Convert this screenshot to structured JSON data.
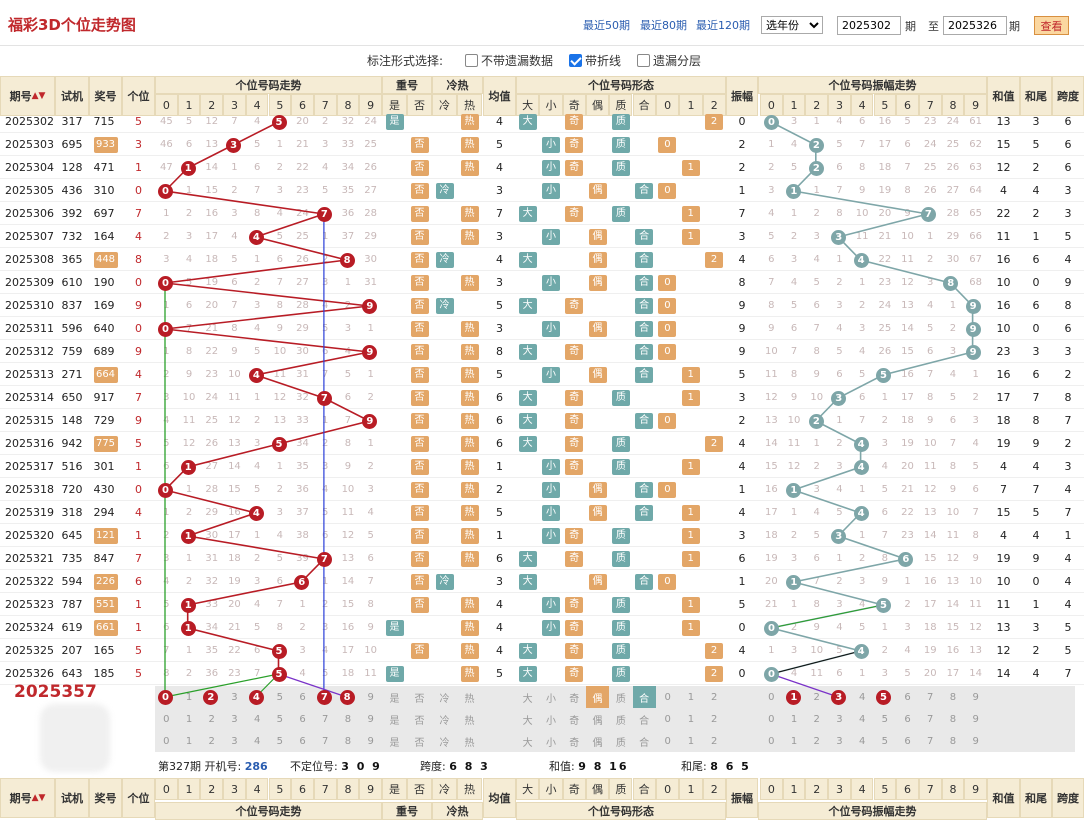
{
  "header": {
    "title": "福彩3D个位走势图",
    "links": [
      "最近50期",
      "最近80期",
      "最近120期"
    ],
    "year_select": "选年份",
    "from_value": "2025302",
    "from_suffix": "期",
    "to_prefix": "至",
    "to_value": "2025326",
    "to_suffix": "期",
    "query": "查看"
  },
  "options": {
    "label": "标注形式选择:",
    "items": [
      {
        "label": "不带遗漏数据",
        "checked": false
      },
      {
        "label": "带折线",
        "checked": true
      },
      {
        "label": "遗漏分层",
        "checked": false
      }
    ]
  },
  "columns": {
    "period": "期号",
    "trial": "试机",
    "prize": "奖号",
    "unit": "个位",
    "trend": "个位号码走势",
    "repeat": "重号",
    "repeat_yes": "是",
    "repeat_no": "否",
    "coldhot": "冷热",
    "cold": "冷",
    "hot": "热",
    "avg": "均值",
    "form": "个位号码形态",
    "big": "大",
    "small": "小",
    "odd": "奇",
    "even": "偶",
    "prime": "质",
    "composite": "合",
    "amp": "振幅",
    "amp_trend": "个位号码振幅走势",
    "sum": "和值",
    "tail": "和尾",
    "span": "跨度",
    "digits": [
      "0",
      "1",
      "2",
      "3",
      "4",
      "5",
      "6",
      "7",
      "8",
      "9"
    ],
    "road": [
      "0",
      "1",
      "2"
    ]
  },
  "rows": [
    {
      "p": "2025302",
      "t": "317",
      "z": "715",
      "g": 5,
      "avg": 4,
      "amp": 0,
      "sum": 13,
      "tail": 3,
      "span": 6,
      "rep": "是",
      "ch": "热",
      "miss": [
        "45",
        "5",
        "12",
        "7",
        "4",
        "",
        "20",
        "2",
        "32",
        "24"
      ],
      "am": [
        "",
        "3",
        "1",
        "4",
        "6",
        "16",
        "5",
        "23",
        "24",
        "61"
      ]
    },
    {
      "p": "2025303",
      "t": "695",
      "z": "933",
      "g": 3,
      "avg": 5,
      "amp": 2,
      "sum": 15,
      "tail": 5,
      "span": 6,
      "rep": "否",
      "ch": "热",
      "miss": [
        "46",
        "6",
        "13",
        "",
        "5",
        "1",
        "21",
        "3",
        "33",
        "25"
      ],
      "am": [
        "1",
        "4",
        "",
        "5",
        "7",
        "17",
        "6",
        "24",
        "25",
        "62"
      ]
    },
    {
      "p": "2025304",
      "t": "128",
      "z": "471",
      "g": 1,
      "avg": 4,
      "amp": 2,
      "sum": 12,
      "tail": 2,
      "span": 6,
      "rep": "否",
      "ch": "热",
      "miss": [
        "47",
        "",
        "14",
        "1",
        "6",
        "2",
        "22",
        "4",
        "34",
        "26"
      ],
      "am": [
        "2",
        "5",
        "",
        "6",
        "8",
        "18",
        "7",
        "25",
        "26",
        "63"
      ]
    },
    {
      "p": "2025305",
      "t": "436",
      "z": "310",
      "g": 0,
      "avg": 3,
      "amp": 1,
      "sum": 4,
      "tail": 4,
      "span": 3,
      "rep": "否",
      "ch": "冷",
      "miss": [
        "",
        "1",
        "15",
        "2",
        "7",
        "3",
        "23",
        "5",
        "35",
        "27"
      ],
      "am": [
        "3",
        "",
        "1",
        "7",
        "9",
        "19",
        "8",
        "26",
        "27",
        "64"
      ]
    },
    {
      "p": "2025306",
      "t": "392",
      "z": "697",
      "g": 7,
      "avg": 7,
      "amp": 7,
      "sum": 22,
      "tail": 2,
      "span": 3,
      "rep": "否",
      "ch": "热",
      "miss": [
        "1",
        "2",
        "16",
        "3",
        "8",
        "4",
        "24",
        "",
        "36",
        "28"
      ],
      "am": [
        "4",
        "1",
        "2",
        "8",
        "10",
        "20",
        "9",
        "",
        "28",
        "65"
      ]
    },
    {
      "p": "2025307",
      "t": "732",
      "z": "164",
      "g": 4,
      "avg": 3,
      "amp": 3,
      "sum": 11,
      "tail": 1,
      "span": 5,
      "rep": "否",
      "ch": "热",
      "miss": [
        "2",
        "3",
        "17",
        "4",
        "",
        "5",
        "25",
        "1",
        "37",
        "29"
      ],
      "am": [
        "5",
        "2",
        "3",
        "",
        "11",
        "21",
        "10",
        "1",
        "29",
        "66"
      ]
    },
    {
      "p": "2025308",
      "t": "365",
      "z": "448",
      "g": 8,
      "avg": 4,
      "amp": 4,
      "sum": 16,
      "tail": 6,
      "span": 4,
      "rep": "否",
      "ch": "冷",
      "miss": [
        "3",
        "4",
        "18",
        "5",
        "1",
        "6",
        "26",
        "2",
        "",
        "30"
      ],
      "am": [
        "6",
        "3",
        "4",
        "1",
        "",
        "22",
        "11",
        "2",
        "30",
        "67"
      ]
    },
    {
      "p": "2025309",
      "t": "610",
      "z": "190",
      "g": 0,
      "avg": 3,
      "amp": 8,
      "sum": 10,
      "tail": 0,
      "span": 9,
      "rep": "否",
      "ch": "热",
      "miss": [
        "",
        "5",
        "19",
        "6",
        "2",
        "7",
        "27",
        "3",
        "1",
        "31"
      ],
      "am": [
        "7",
        "4",
        "5",
        "2",
        "1",
        "23",
        "12",
        "3",
        "",
        "68"
      ]
    },
    {
      "p": "2025310",
      "t": "837",
      "z": "169",
      "g": 9,
      "avg": 5,
      "amp": 9,
      "sum": 16,
      "tail": 6,
      "span": 8,
      "rep": "否",
      "ch": "冷",
      "miss": [
        "1",
        "6",
        "20",
        "7",
        "3",
        "8",
        "28",
        "4",
        "2",
        ""
      ],
      "am": [
        "8",
        "5",
        "6",
        "3",
        "2",
        "24",
        "13",
        "4",
        "1",
        ""
      ]
    },
    {
      "p": "2025311",
      "t": "596",
      "z": "640",
      "g": 0,
      "avg": 3,
      "amp": 9,
      "sum": 10,
      "tail": 0,
      "span": 6,
      "rep": "否",
      "ch": "热",
      "miss": [
        "",
        "7",
        "21",
        "8",
        "4",
        "9",
        "29",
        "5",
        "3",
        "1"
      ],
      "am": [
        "9",
        "6",
        "7",
        "4",
        "3",
        "25",
        "14",
        "5",
        "2",
        ""
      ]
    },
    {
      "p": "2025312",
      "t": "759",
      "z": "689",
      "g": 9,
      "avg": 8,
      "amp": 9,
      "sum": 23,
      "tail": 3,
      "span": 3,
      "rep": "否",
      "ch": "热",
      "miss": [
        "1",
        "8",
        "22",
        "9",
        "5",
        "10",
        "30",
        "6",
        "4",
        ""
      ],
      "am": [
        "10",
        "7",
        "8",
        "5",
        "4",
        "26",
        "15",
        "6",
        "3",
        ""
      ]
    },
    {
      "p": "2025313",
      "t": "271",
      "z": "664",
      "g": 4,
      "avg": 5,
      "amp": 5,
      "sum": 16,
      "tail": 6,
      "span": 2,
      "rep": "否",
      "ch": "热",
      "miss": [
        "2",
        "9",
        "23",
        "10",
        "",
        "11",
        "31",
        "7",
        "5",
        "1"
      ],
      "am": [
        "11",
        "8",
        "9",
        "6",
        "5",
        "",
        "16",
        "7",
        "4",
        "1"
      ]
    },
    {
      "p": "2025314",
      "t": "650",
      "z": "917",
      "g": 7,
      "avg": 6,
      "amp": 3,
      "sum": 17,
      "tail": 7,
      "span": 8,
      "rep": "否",
      "ch": "热",
      "miss": [
        "3",
        "10",
        "24",
        "11",
        "1",
        "12",
        "32",
        "",
        "6",
        "2"
      ],
      "am": [
        "12",
        "9",
        "10",
        "",
        "6",
        "1",
        "17",
        "8",
        "5",
        "2"
      ]
    },
    {
      "p": "2025315",
      "t": "148",
      "z": "729",
      "g": 9,
      "avg": 6,
      "amp": 2,
      "sum": 18,
      "tail": 8,
      "span": 7,
      "rep": "否",
      "ch": "热",
      "miss": [
        "4",
        "11",
        "25",
        "12",
        "2",
        "13",
        "33",
        "1",
        "7",
        ""
      ],
      "am": [
        "13",
        "10",
        "",
        "1",
        "7",
        "2",
        "18",
        "9",
        "6",
        "3"
      ]
    },
    {
      "p": "2025316",
      "t": "942",
      "z": "775",
      "g": 5,
      "avg": 6,
      "amp": 4,
      "sum": 19,
      "tail": 9,
      "span": 2,
      "rep": "否",
      "ch": "热",
      "miss": [
        "5",
        "12",
        "26",
        "13",
        "3",
        "",
        "34",
        "2",
        "8",
        "1"
      ],
      "am": [
        "14",
        "11",
        "1",
        "2",
        "",
        "3",
        "19",
        "10",
        "7",
        "4"
      ]
    },
    {
      "p": "2025317",
      "t": "516",
      "z": "301",
      "g": 1,
      "avg": 1,
      "amp": 4,
      "sum": 4,
      "tail": 4,
      "span": 3,
      "rep": "否",
      "ch": "热",
      "miss": [
        "6",
        "",
        "27",
        "14",
        "4",
        "1",
        "35",
        "3",
        "9",
        "2"
      ],
      "am": [
        "15",
        "12",
        "2",
        "3",
        "",
        "4",
        "20",
        "11",
        "8",
        "5"
      ]
    },
    {
      "p": "2025318",
      "t": "720",
      "z": "430",
      "g": 0,
      "avg": 2,
      "amp": 1,
      "sum": 7,
      "tail": 7,
      "span": 4,
      "rep": "否",
      "ch": "热",
      "miss": [
        "",
        "1",
        "28",
        "15",
        "5",
        "2",
        "36",
        "4",
        "10",
        "3"
      ],
      "am": [
        "16",
        "",
        "3",
        "4",
        "1",
        "5",
        "21",
        "12",
        "9",
        "6"
      ]
    },
    {
      "p": "2025319",
      "t": "318",
      "z": "294",
      "g": 4,
      "avg": 5,
      "amp": 4,
      "sum": 15,
      "tail": 5,
      "span": 7,
      "rep": "否",
      "ch": "热",
      "miss": [
        "1",
        "2",
        "29",
        "16",
        "",
        "3",
        "37",
        "5",
        "11",
        "4"
      ],
      "am": [
        "17",
        "1",
        "4",
        "5",
        "",
        "6",
        "22",
        "13",
        "10",
        "7"
      ]
    },
    {
      "p": "2025320",
      "t": "645",
      "z": "121",
      "g": 1,
      "avg": 1,
      "amp": 3,
      "sum": 4,
      "tail": 4,
      "span": 1,
      "rep": "否",
      "ch": "热",
      "miss": [
        "2",
        "",
        "30",
        "17",
        "1",
        "4",
        "38",
        "6",
        "12",
        "5"
      ],
      "am": [
        "18",
        "2",
        "5",
        "",
        "1",
        "7",
        "23",
        "14",
        "11",
        "8"
      ]
    },
    {
      "p": "2025321",
      "t": "735",
      "z": "847",
      "g": 7,
      "avg": 6,
      "amp": 6,
      "sum": 19,
      "tail": 9,
      "span": 4,
      "rep": "否",
      "ch": "热",
      "miss": [
        "3",
        "1",
        "31",
        "18",
        "2",
        "5",
        "39",
        "",
        "13",
        "6"
      ],
      "am": [
        "19",
        "3",
        "6",
        "1",
        "2",
        "8",
        "",
        "15",
        "12",
        "9"
      ]
    },
    {
      "p": "2025322",
      "t": "594",
      "z": "226",
      "g": 6,
      "avg": 3,
      "amp": 1,
      "sum": 10,
      "tail": 0,
      "span": 4,
      "rep": "否",
      "ch": "冷",
      "miss": [
        "4",
        "2",
        "32",
        "19",
        "3",
        "6",
        "",
        "1",
        "14",
        "7"
      ],
      "am": [
        "20",
        "",
        "7",
        "2",
        "3",
        "9",
        "1",
        "16",
        "13",
        "10"
      ]
    },
    {
      "p": "2025323",
      "t": "787",
      "z": "551",
      "g": 1,
      "avg": 4,
      "amp": 5,
      "sum": 11,
      "tail": 1,
      "span": 4,
      "rep": "否",
      "ch": "热",
      "miss": [
        "5",
        "",
        "33",
        "20",
        "4",
        "7",
        "1",
        "2",
        "15",
        "8"
      ],
      "am": [
        "21",
        "1",
        "8",
        "3",
        "4",
        "",
        "2",
        "17",
        "14",
        "11"
      ]
    },
    {
      "p": "2025324",
      "t": "619",
      "z": "661",
      "g": 1,
      "avg": 4,
      "amp": 0,
      "sum": 13,
      "tail": 3,
      "span": 5,
      "rep": "是",
      "ch": "热",
      "miss": [
        "6",
        "",
        "34",
        "21",
        "5",
        "8",
        "2",
        "3",
        "16",
        "9"
      ],
      "am": [
        "",
        "2",
        "9",
        "4",
        "5",
        "1",
        "3",
        "18",
        "15",
        "12"
      ]
    },
    {
      "p": "2025325",
      "t": "207",
      "z": "165",
      "g": 5,
      "avg": 4,
      "amp": 4,
      "sum": 12,
      "tail": 2,
      "span": 5,
      "rep": "否",
      "ch": "热",
      "miss": [
        "7",
        "1",
        "35",
        "22",
        "6",
        "",
        "3",
        "4",
        "17",
        "10"
      ],
      "am": [
        "1",
        "3",
        "10",
        "5",
        "",
        "2",
        "4",
        "19",
        "16",
        "13"
      ]
    },
    {
      "p": "2025326",
      "t": "643",
      "z": "185",
      "g": 5,
      "avg": 5,
      "amp": 0,
      "sum": 14,
      "tail": 4,
      "span": 7,
      "rep": "是",
      "ch": "热",
      "miss": [
        "8",
        "2",
        "36",
        "23",
        "7",
        "",
        "4",
        "5",
        "18",
        "11"
      ],
      "am": [
        "",
        "4",
        "11",
        "6",
        "1",
        "3",
        "5",
        "20",
        "17",
        "14"
      ]
    }
  ],
  "predict": {
    "period": "2025357",
    "trend_sel": [
      "0",
      "2",
      "4",
      "7",
      "8"
    ],
    "amp_sel": [
      "1",
      "3",
      "5"
    ]
  },
  "info": {
    "period_label": "第327期 开机号:",
    "kaiji": "286",
    "bu_label": "不定位号:",
    "bu": "3 0 9",
    "span_label": "跨度:",
    "span": "6 8 3",
    "sum_label": "和值:",
    "sum": "9 8 16",
    "tail_label": "和尾:",
    "tail": "8 6 5"
  },
  "colors": {
    "red": "#b81c25",
    "teal": "#7ea6a8",
    "orange": "#e3a667",
    "header": "#f5ecd5"
  }
}
